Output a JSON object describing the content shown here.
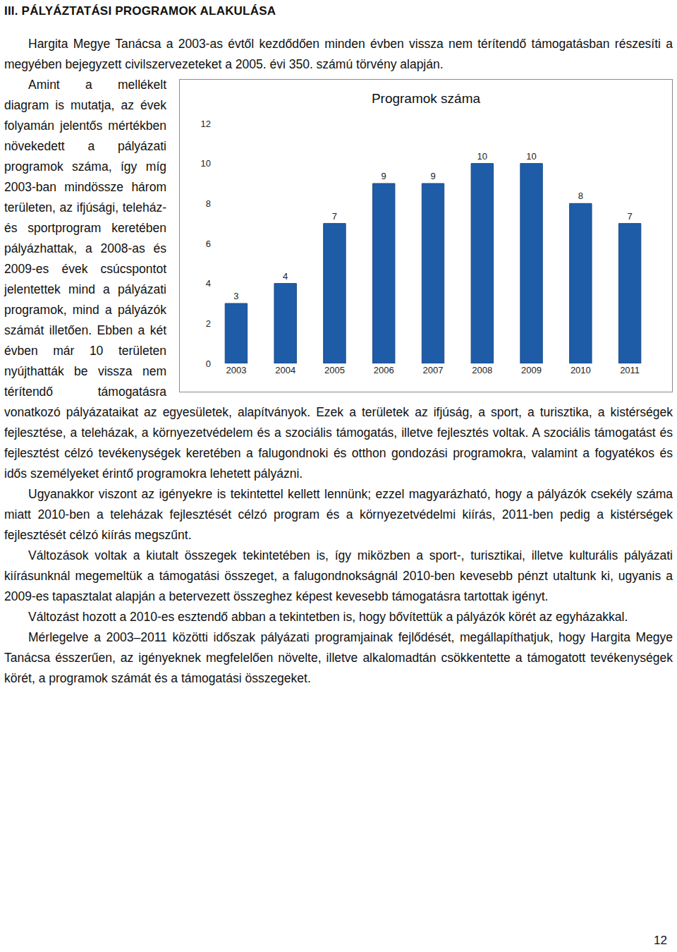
{
  "heading": "III. PÁLYÁZTATÁSI PROGRAMOK ALAKULÁSA",
  "paragraphs": [
    "Hargita Megye Tanácsa a 2003-as évtől kezdődően minden évben vissza nem térítendő támogatásban részesíti a megyében bejegyzett civilszervezeteket a 2005. évi 350. számú törvény alapján.",
    "Amint a mellékelt diagram is mutatja, az évek folyamán jelentős mértékben növekedett a pályázati programok száma, így míg 2003-ban mindössze három területen, az ifjúsági, teleház- és sportprogram keretében pályázhattak, a 2008-as és 2009-es évek csúcspontot jelentettek mind a pályázati programok, mind a pályázók számát illetően. Ebben a két évben már 10 területen nyújthatták be vissza nem térítendő támogatásra vonatkozó pályázataikat az egyesületek, alapítványok. Ezek a területek az ifjúság, a sport, a turisztika, a kistérségek fejlesztése, a teleházak, a környezetvédelem és a szociális támogatás, illetve fejlesztés voltak. A szociális támogatást és fejlesztést célzó tevékenységek keretében a falugondnoki és otthon gondozási programokra, valamint a fogyatékos és idős személyeket érintő programokra lehetett pályázni.",
    "Ugyanakkor viszont az igényekre is tekintettel kellett lennünk; ezzel magyarázható, hogy a pályázók csekély száma miatt 2010-ben a teleházak fejlesztését célzó program és a környezetvédelmi kiírás, 2011-ben pedig a kistérségek fejlesztését célzó kiírás megszűnt.",
    "Változások voltak a kiutalt összegek tekintetében is, így miközben a sport-, turisztikai, illetve kulturális pályázati kiírásunknál megemeltük a támogatási összeget, a falugondnokságnál 2010-ben kevesebb pénzt utaltunk ki, ugyanis a 2009-es tapasztalat alapján a betervezett összeghez képest kevesebb támogatásra tartottak igényt.",
    "Változást hozott a 2010-es esztendő abban a tekintetben is, hogy bővítettük a pályázók körét az egyházakkal.",
    "Mérlegelve a 2003–2011 közötti időszak pályázati programjainak fejlődését, megállapíthatjuk, hogy Hargita Megye Tanácsa ésszerűen, az igényeknek megfelelően növelte, illetve alkalomadtán csökkentette a támogatott tevékenységek körét, a programok számát és a támogatási összegeket."
  ],
  "chart_data": {
    "type": "bar",
    "title": "Programok száma",
    "categories": [
      "2003",
      "2004",
      "2005",
      "2006",
      "2007",
      "2008",
      "2009",
      "2010",
      "2011"
    ],
    "values": [
      3,
      4,
      7,
      9,
      9,
      10,
      10,
      8,
      7
    ],
    "color": "#1f5ca8",
    "ylim": [
      0,
      12
    ],
    "yticks": [
      0,
      2,
      4,
      6,
      8,
      10,
      12
    ],
    "grid": false,
    "data_labels": true
  },
  "page_number": 12
}
